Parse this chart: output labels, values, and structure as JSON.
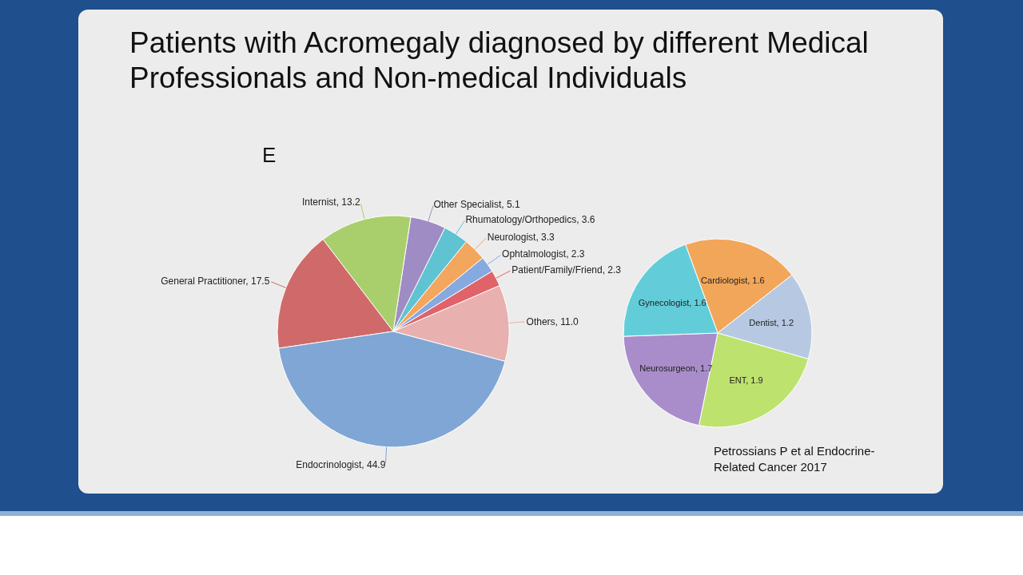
{
  "chart_data": [
    {
      "type": "pie",
      "title": "Patients with Acromegaly diagnosed by different Medical Professionals and Non-medical Individuals",
      "annotations": [
        "E"
      ],
      "categories": [
        "Others",
        "Patient/Family/Friend",
        "Ophtalmologist",
        "Neurologist",
        "Rhumatology/Orthopedics",
        "Other Specialist",
        "Internist",
        "General Practitioner",
        "Endocrinologist"
      ],
      "values": [
        11.0,
        2.3,
        2.3,
        3.3,
        3.6,
        5.1,
        13.2,
        17.5,
        44.9
      ],
      "value_labels": [
        "11.0",
        "2.3",
        "2.3",
        "3.3",
        "3.6",
        "5.1",
        "13.2",
        "17.5",
        "44.9"
      ],
      "colors": [
        "#e8b0ae",
        "#e0636a",
        "#86a9e0",
        "#f3a65e",
        "#5fc3d2",
        "#a08cc4",
        "#a9cf6c",
        "#d06a6a",
        "#7fa6d4"
      ]
    },
    {
      "type": "pie",
      "annotations": [
        "Petrossians P et al Endocrine-Related Cancer 2017"
      ],
      "categories": [
        "Cardiologist",
        "Dentist",
        "ENT",
        "Neurosurgeon",
        "Gynecologist"
      ],
      "values": [
        1.6,
        1.2,
        1.9,
        1.7,
        1.6
      ],
      "value_labels": [
        "1.6",
        "1.2",
        "1.9",
        "1.7",
        "1.6"
      ],
      "colors": [
        "#f2a65a",
        "#b7c9e2",
        "#bde26e",
        "#a98dcb",
        "#62cdd8"
      ]
    }
  ]
}
